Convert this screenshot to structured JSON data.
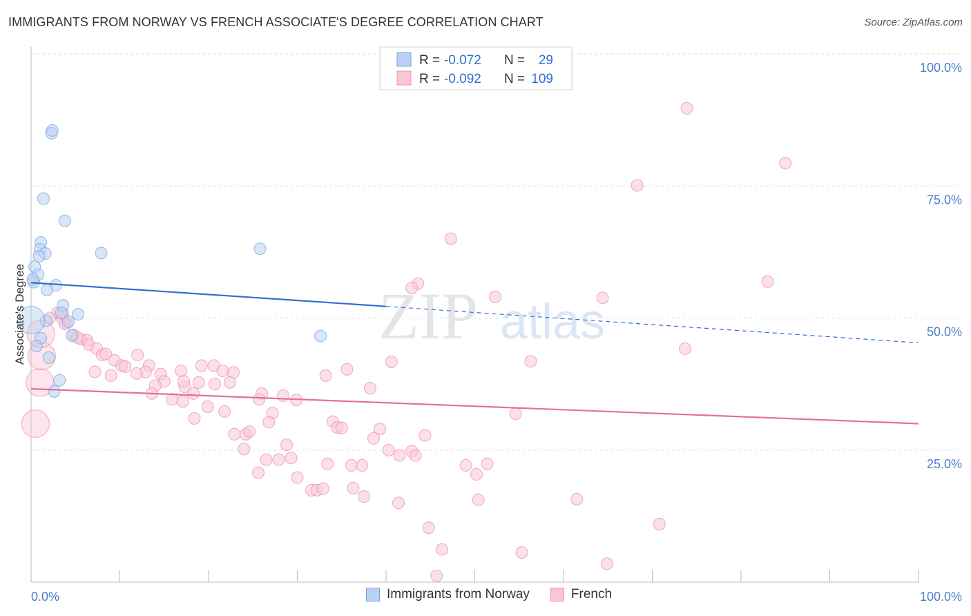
{
  "title": "IMMIGRANTS FROM NORWAY VS FRENCH ASSOCIATE'S DEGREE CORRELATION CHART",
  "source": "Source: ZipAtlas.com",
  "watermark": {
    "zip": "ZIP",
    "atlas": "atlas"
  },
  "colors": {
    "blue_fill": "#b9d1f2",
    "blue_stroke": "#7aa6e0",
    "blue_line": "#2f6fd0",
    "pink_fill": "#f9c6d6",
    "pink_stroke": "#ec93ad",
    "pink_line": "#e2709a",
    "axis_text": "#4a7fc6",
    "grid": "#dddddd"
  },
  "legend_stats": [
    {
      "r_label": "R =",
      "r_value": "-0.072",
      "n_label": "N =",
      "n_value": "29"
    },
    {
      "r_label": "R =",
      "r_value": "-0.092",
      "n_label": "N =",
      "n_value": "109"
    }
  ],
  "chart_data": {
    "type": "scatter",
    "title": "IMMIGRANTS FROM NORWAY VS FRENCH ASSOCIATE'S DEGREE CORRELATION CHART",
    "xlabel": "",
    "ylabel": "Associate's Degree",
    "xlim": [
      0,
      100
    ],
    "ylim": [
      0,
      100
    ],
    "x_tick_labels": [
      "0.0%",
      "100.0%"
    ],
    "y_ticks": [
      25,
      50,
      75,
      100
    ],
    "y_tick_labels": [
      "25.0%",
      "50.0%",
      "75.0%",
      "100.0%"
    ],
    "grid": true,
    "legend_position": "bottom",
    "series": [
      {
        "name": "Immigrants from Norway",
        "r": -0.072,
        "n": 29,
        "trend": {
          "x0": 0,
          "y0": 56.7,
          "x1": 40,
          "y1": 52.2,
          "dashed_to_x": 100,
          "dashed_to_y": 45.3
        },
        "points": [
          [
            2.3,
            85.0
          ],
          [
            2.4,
            85.5
          ],
          [
            1.4,
            72.6
          ],
          [
            3.8,
            68.4
          ],
          [
            7.9,
            62.3
          ],
          [
            25.8,
            63.1
          ],
          [
            1.1,
            64.3
          ],
          [
            1.0,
            63.0
          ],
          [
            1.6,
            62.2
          ],
          [
            0.9,
            61.7
          ],
          [
            0.4,
            59.7
          ],
          [
            0.8,
            58.2
          ],
          [
            0.3,
            56.8
          ],
          [
            2.8,
            56.2
          ],
          [
            1.8,
            55.3
          ],
          [
            3.6,
            52.4
          ],
          [
            3.4,
            51.0
          ],
          [
            5.3,
            50.7
          ],
          [
            1.7,
            49.5
          ],
          [
            4.2,
            49.3
          ],
          [
            0.0,
            49.6
          ],
          [
            1.1,
            46.2
          ],
          [
            4.6,
            46.7
          ],
          [
            0.6,
            44.7
          ],
          [
            2.0,
            42.5
          ],
          [
            32.6,
            46.6
          ],
          [
            3.2,
            38.2
          ],
          [
            2.6,
            36.1
          ],
          [
            0.2,
            57.3
          ]
        ],
        "big_points": [
          [
            0.0,
            49.6
          ]
        ]
      },
      {
        "name": "French",
        "r": -0.092,
        "n": 109,
        "trend": {
          "x0": 0,
          "y0": 36.6,
          "x1": 100,
          "y1": 30.0
        },
        "points": [
          [
            73.9,
            89.7
          ],
          [
            85.0,
            79.3
          ],
          [
            68.3,
            75.1
          ],
          [
            47.3,
            65.0
          ],
          [
            83.0,
            56.9
          ],
          [
            43.6,
            56.5
          ],
          [
            42.9,
            55.7
          ],
          [
            52.3,
            54.0
          ],
          [
            64.4,
            53.8
          ],
          [
            3.0,
            51.0
          ],
          [
            3.5,
            49.9
          ],
          [
            4.0,
            49.0
          ],
          [
            4.8,
            46.8
          ],
          [
            5.6,
            46.0
          ],
          [
            6.3,
            45.8
          ],
          [
            6.5,
            45.0
          ],
          [
            7.4,
            44.2
          ],
          [
            8.0,
            43.0
          ],
          [
            8.4,
            43.2
          ],
          [
            12.0,
            43.0
          ],
          [
            9.4,
            42.0
          ],
          [
            10.2,
            41.0
          ],
          [
            10.6,
            40.8
          ],
          [
            13.3,
            41.0
          ],
          [
            12.9,
            39.8
          ],
          [
            11.9,
            39.5
          ],
          [
            7.2,
            39.8
          ],
          [
            9.0,
            39.1
          ],
          [
            14.6,
            39.4
          ],
          [
            15.0,
            38.0
          ],
          [
            16.9,
            40.0
          ],
          [
            17.3,
            37.0
          ],
          [
            14.0,
            37.2
          ],
          [
            19.2,
            41.0
          ],
          [
            20.6,
            41.0
          ],
          [
            21.6,
            40.0
          ],
          [
            22.8,
            39.7
          ],
          [
            17.2,
            38.0
          ],
          [
            18.9,
            37.8
          ],
          [
            20.7,
            37.5
          ],
          [
            22.4,
            37.8
          ],
          [
            26.0,
            35.7
          ],
          [
            13.6,
            35.7
          ],
          [
            15.9,
            34.6
          ],
          [
            17.1,
            34.2
          ],
          [
            18.3,
            35.7
          ],
          [
            25.7,
            34.6
          ],
          [
            28.4,
            35.3
          ],
          [
            29.9,
            34.5
          ],
          [
            33.2,
            39.1
          ],
          [
            35.6,
            40.3
          ],
          [
            38.2,
            36.7
          ],
          [
            40.6,
            41.7
          ],
          [
            56.3,
            41.8
          ],
          [
            73.7,
            44.2
          ],
          [
            19.9,
            33.2
          ],
          [
            21.8,
            32.3
          ],
          [
            27.2,
            32.0
          ],
          [
            18.4,
            31.0
          ],
          [
            26.8,
            30.3
          ],
          [
            34.0,
            30.4
          ],
          [
            34.5,
            29.3
          ],
          [
            35.0,
            29.2
          ],
          [
            39.3,
            29.0
          ],
          [
            54.6,
            31.9
          ],
          [
            22.9,
            28.0
          ],
          [
            24.2,
            28.0
          ],
          [
            24.6,
            28.5
          ],
          [
            38.6,
            27.2
          ],
          [
            44.4,
            27.8
          ],
          [
            28.8,
            26.0
          ],
          [
            24.0,
            25.2
          ],
          [
            40.3,
            25.0
          ],
          [
            42.9,
            24.8
          ],
          [
            41.5,
            24.0
          ],
          [
            43.3,
            24.0
          ],
          [
            29.3,
            23.5
          ],
          [
            27.9,
            23.2
          ],
          [
            26.5,
            23.2
          ],
          [
            33.4,
            22.4
          ],
          [
            36.1,
            22.1
          ],
          [
            37.3,
            22.1
          ],
          [
            49.0,
            22.1
          ],
          [
            51.4,
            22.4
          ],
          [
            25.6,
            20.7
          ],
          [
            30.0,
            19.8
          ],
          [
            50.2,
            20.4
          ],
          [
            36.3,
            17.8
          ],
          [
            31.6,
            17.4
          ],
          [
            32.2,
            17.4
          ],
          [
            32.9,
            17.7
          ],
          [
            37.5,
            16.2
          ],
          [
            50.4,
            15.6
          ],
          [
            61.5,
            15.7
          ],
          [
            41.4,
            15.0
          ],
          [
            70.8,
            11.0
          ],
          [
            44.8,
            10.3
          ],
          [
            46.3,
            6.2
          ],
          [
            55.3,
            5.6
          ],
          [
            64.9,
            3.5
          ],
          [
            45.7,
            1.2
          ],
          [
            0.5,
            30.0
          ],
          [
            1.0,
            37.8
          ],
          [
            1.2,
            42.8
          ],
          [
            1.1,
            47.0
          ],
          [
            3.6,
            50.8
          ],
          [
            5.2,
            46.3
          ],
          [
            3.8,
            48.9
          ],
          [
            2.1,
            50.0
          ]
        ],
        "big_points": [
          [
            1.0,
            37.8
          ],
          [
            1.2,
            42.8
          ],
          [
            1.1,
            47.0
          ],
          [
            0.5,
            30.0
          ]
        ]
      }
    ]
  }
}
